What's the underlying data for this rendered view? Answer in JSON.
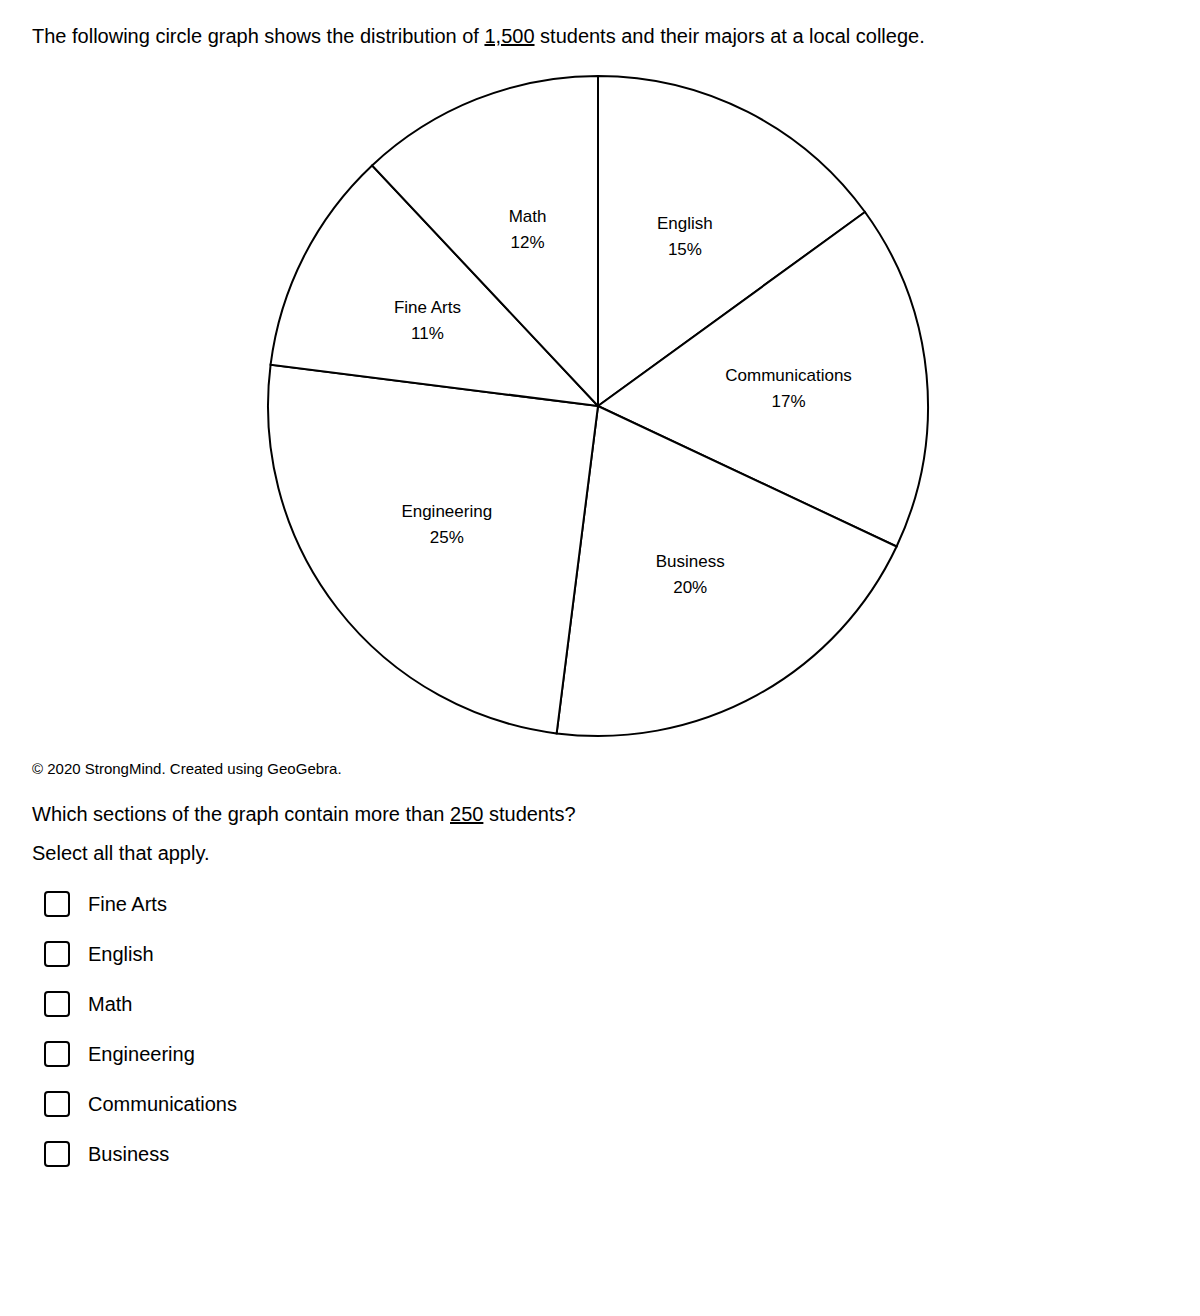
{
  "chart_data": {
    "type": "pie",
    "title": "The following circle graph shows the distribution of 1,500 students and their majors at a local college.",
    "categories": [
      "English",
      "Communications",
      "Business",
      "Engineering",
      "Fine Arts",
      "Math"
    ],
    "values": [
      15,
      17,
      20,
      25,
      11,
      12
    ],
    "value_labels": [
      "15%",
      "17%",
      "20%",
      "25%",
      "11%",
      "12%"
    ],
    "data_labels": true,
    "color": "#ffffff",
    "annotations": [
      "© 2020 StrongMind. Created using GeoGebra.",
      "Which sections of the graph contain more than 250 students?",
      "Select all that apply.",
      "Fine Arts",
      "English",
      "Math",
      "Engineering",
      "Communications",
      "Business"
    ]
  }
}
